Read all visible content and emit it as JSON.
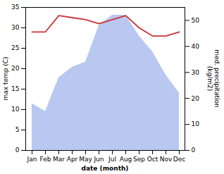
{
  "chart_data": {
    "type": "line",
    "categories": [
      "Jan",
      "Feb",
      "Mar",
      "Apr",
      "May",
      "Jun",
      "Jul",
      "Aug",
      "Sep",
      "Oct",
      "Nov",
      "Dec"
    ],
    "series": [
      {
        "type": "area",
        "axis": "y2",
        "color": "#b8c8f0",
        "values": [
          18,
          15,
          28,
          32,
          34,
          48,
          52,
          52,
          44,
          38,
          29,
          22
        ]
      },
      {
        "color": "#cc3333",
        "values": [
          29,
          29,
          33,
          32.5,
          32,
          31,
          32,
          33,
          30,
          28,
          28,
          29
        ]
      }
    ],
    "xlabel": "date (month)",
    "ylabel": "max temp (C)",
    "y2label": "med. precipitation\n(kg/m2)",
    "ylim": [
      0,
      35
    ],
    "yticks": [
      0,
      5,
      10,
      15,
      20,
      25,
      30,
      35
    ],
    "y2lim": [
      0,
      55
    ],
    "y2ticks": [
      0,
      10,
      20,
      30,
      40,
      50
    ]
  }
}
